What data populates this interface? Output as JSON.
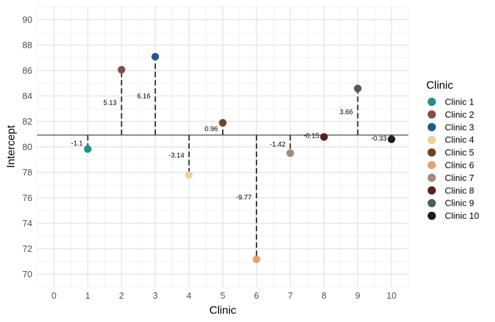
{
  "chart_data": {
    "type": "lollipop",
    "title": "",
    "xlabel": "Clinic",
    "ylabel": "Intercept",
    "xlim": [
      -0.5,
      10.5
    ],
    "ylim": [
      69,
      91
    ],
    "x_ticks": [
      "0",
      "1",
      "2",
      "3",
      "4",
      "5",
      "6",
      "7",
      "8",
      "9",
      "10"
    ],
    "y_ticks": [
      "70",
      "72",
      "74",
      "76",
      "78",
      "80",
      "82",
      "84",
      "86",
      "88",
      "90"
    ],
    "x_tick_values": [
      0,
      1,
      2,
      3,
      4,
      5,
      6,
      7,
      8,
      9,
      10
    ],
    "y_tick_values": [
      70,
      72,
      74,
      76,
      78,
      80,
      82,
      84,
      86,
      88,
      90
    ],
    "baseline": 80.93,
    "grid": true,
    "legend": {
      "title": "Clinic",
      "position": "right"
    },
    "series": [
      {
        "name": "Clinic 1",
        "x": 1,
        "y": 79.83,
        "offset_label": "-1.1",
        "color": "#1F9387"
      },
      {
        "name": "Clinic 2",
        "x": 2,
        "y": 86.06,
        "offset_label": "5.13",
        "color": "#874D4D"
      },
      {
        "name": "Clinic 3",
        "x": 3,
        "y": 87.09,
        "offset_label": "6.16",
        "color": "#1F5A8C"
      },
      {
        "name": "Clinic 4",
        "x": 4,
        "y": 77.79,
        "offset_label": "-3.14",
        "color": "#E8D49A"
      },
      {
        "name": "Clinic 5",
        "x": 5,
        "y": 81.89,
        "offset_label": "0.96",
        "color": "#6B4423"
      },
      {
        "name": "Clinic 6",
        "x": 6,
        "y": 71.16,
        "offset_label": "-9.77",
        "color": "#E6A073"
      },
      {
        "name": "Clinic 7",
        "x": 7,
        "y": 79.51,
        "offset_label": "-1.42",
        "color": "#A08C78"
      },
      {
        "name": "Clinic 8",
        "x": 8,
        "y": 80.78,
        "offset_label": "-0.15",
        "color": "#5C1F1F"
      },
      {
        "name": "Clinic 9",
        "x": 9,
        "y": 84.59,
        "offset_label": "3.66",
        "color": "#505C61"
      },
      {
        "name": "Clinic 10",
        "x": 10,
        "y": 80.6,
        "offset_label": "-0.33",
        "color": "#1A1F1C"
      }
    ]
  }
}
